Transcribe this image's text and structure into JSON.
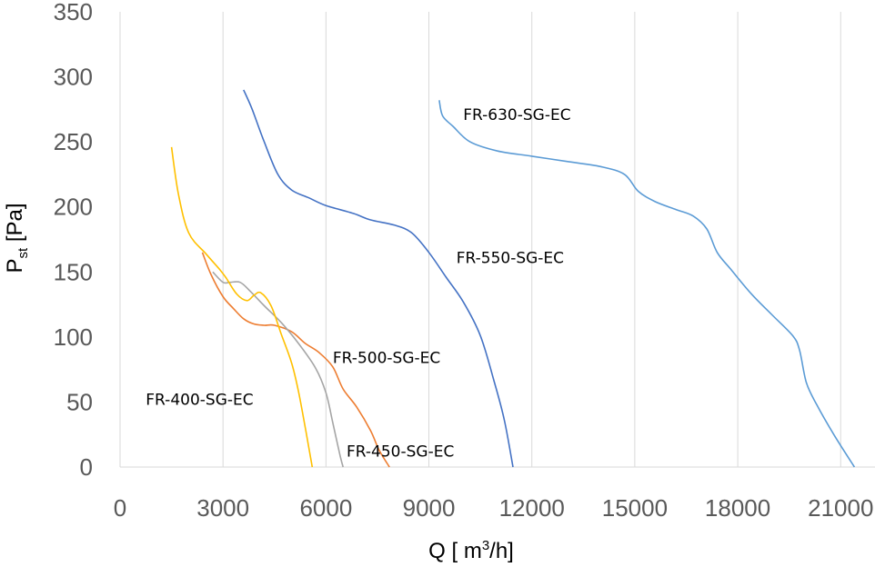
{
  "chart_data": {
    "type": "line",
    "xlabel": {
      "main": "Q [ m",
      "sup": "3",
      "tail": "/h]"
    },
    "ylabel": {
      "main": "P",
      "sub": "st",
      "tail": " [Pa]"
    },
    "xlim": [
      0,
      22000
    ],
    "ylim": [
      0,
      350
    ],
    "xticks": [
      0,
      3000,
      6000,
      9000,
      12000,
      15000,
      18000,
      21000
    ],
    "yticks": [
      0,
      50,
      100,
      150,
      200,
      250,
      300,
      350
    ],
    "grid": "vertical",
    "series": [
      {
        "name": "FR-630-SG-EC",
        "color": "#5b9bd5",
        "points": [
          [
            9300,
            282
          ],
          [
            9400,
            270
          ],
          [
            9700,
            262
          ],
          [
            10200,
            250
          ],
          [
            11000,
            243
          ],
          [
            12000,
            239
          ],
          [
            13000,
            235
          ],
          [
            14000,
            231
          ],
          [
            14700,
            225
          ],
          [
            15100,
            212
          ],
          [
            15600,
            204
          ],
          [
            16200,
            198
          ],
          [
            16700,
            193
          ],
          [
            17100,
            183
          ],
          [
            17400,
            165
          ],
          [
            17800,
            152
          ],
          [
            18400,
            133
          ],
          [
            19000,
            117
          ],
          [
            19600,
            101
          ],
          [
            19800,
            90
          ],
          [
            20000,
            65
          ],
          [
            20300,
            48
          ],
          [
            20800,
            25
          ],
          [
            21400,
            0
          ]
        ]
      },
      {
        "name": "FR-550-SG-EC",
        "color": "#4472c4",
        "points": [
          [
            3600,
            290
          ],
          [
            3850,
            275
          ],
          [
            4200,
            250
          ],
          [
            4600,
            225
          ],
          [
            5000,
            213
          ],
          [
            5500,
            207
          ],
          [
            6000,
            201
          ],
          [
            6800,
            195
          ],
          [
            7300,
            190
          ],
          [
            8000,
            186
          ],
          [
            8500,
            180
          ],
          [
            9000,
            165
          ],
          [
            9500,
            146
          ],
          [
            10000,
            127
          ],
          [
            10500,
            101
          ],
          [
            10900,
            66
          ],
          [
            11200,
            36
          ],
          [
            11450,
            0
          ]
        ]
      },
      {
        "name": "FR-500-SG-EC",
        "color": "#ed7d31",
        "points": [
          [
            2400,
            165
          ],
          [
            2650,
            148
          ],
          [
            3000,
            131
          ],
          [
            3300,
            122
          ],
          [
            3600,
            114
          ],
          [
            3900,
            110
          ],
          [
            4200,
            109
          ],
          [
            4500,
            109
          ],
          [
            5000,
            104
          ],
          [
            5400,
            95
          ],
          [
            5800,
            88
          ],
          [
            6200,
            77
          ],
          [
            6500,
            60
          ],
          [
            6900,
            46
          ],
          [
            7300,
            28
          ],
          [
            7550,
            13
          ],
          [
            7850,
            0
          ]
        ]
      },
      {
        "name": "FR-450-SG-EC",
        "color": "#a5a5a5",
        "points": [
          [
            2700,
            150
          ],
          [
            3000,
            142
          ],
          [
            3200,
            142
          ],
          [
            3500,
            142
          ],
          [
            3800,
            135
          ],
          [
            4200,
            124
          ],
          [
            4700,
            111
          ],
          [
            5200,
            95
          ],
          [
            5700,
            76
          ],
          [
            6000,
            57
          ],
          [
            6200,
            34
          ],
          [
            6400,
            10
          ],
          [
            6500,
            0
          ]
        ]
      },
      {
        "name": "FR-400-SG-EC",
        "color": "#ffc000",
        "points": [
          [
            1500,
            246
          ],
          [
            1700,
            210
          ],
          [
            2000,
            180
          ],
          [
            2500,
            164
          ],
          [
            2900,
            152
          ],
          [
            3100,
            145
          ],
          [
            3400,
            133
          ],
          [
            3700,
            128
          ],
          [
            3900,
            132
          ],
          [
            4100,
            134
          ],
          [
            4400,
            124
          ],
          [
            4700,
            102
          ],
          [
            5000,
            80
          ],
          [
            5200,
            58
          ],
          [
            5400,
            30
          ],
          [
            5500,
            15
          ],
          [
            5600,
            0
          ]
        ]
      }
    ],
    "labels": [
      {
        "series": "FR-630-SG-EC",
        "text": "FR-630-SG-EC",
        "at": [
          10000,
          267
        ]
      },
      {
        "series": "FR-550-SG-EC",
        "text": "FR-550-SG-EC",
        "at": [
          9800,
          157
        ]
      },
      {
        "series": "FR-500-SG-EC",
        "text": "FR-500-SG-EC",
        "at": [
          6200,
          80
        ]
      },
      {
        "series": "FR-450-SG-EC",
        "text": "FR-450-SG-EC",
        "at": [
          6600,
          8
        ]
      },
      {
        "series": "FR-400-SG-EC",
        "text": "FR-400-SG-EC",
        "at": [
          750,
          48
        ]
      }
    ]
  }
}
